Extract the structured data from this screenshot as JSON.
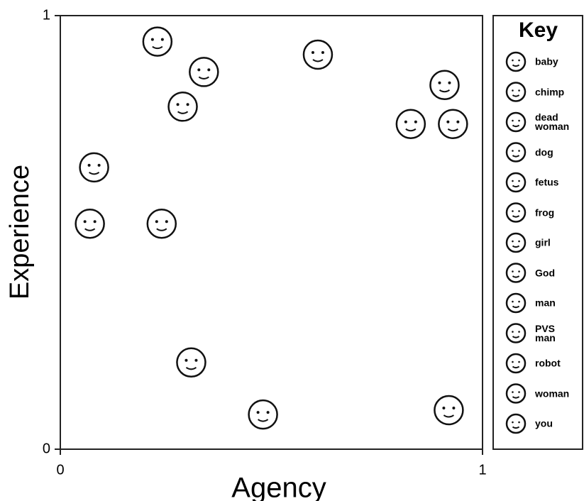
{
  "chart_data": {
    "type": "scatter",
    "xlabel": "Agency",
    "ylabel": "Experience",
    "legend_title": "Key",
    "xlim": [
      0,
      1
    ],
    "ylim": [
      0,
      1
    ],
    "xticks": [
      0,
      1
    ],
    "yticks": [
      0,
      1
    ],
    "series": [
      {
        "name": "baby",
        "x": [
          0.23
        ],
        "y": [
          0.94
        ]
      },
      {
        "name": "chimp",
        "x": [
          0.34
        ],
        "y": [
          0.87
        ]
      },
      {
        "name": "dead woman",
        "x": [
          0.31
        ],
        "y": [
          0.2
        ]
      },
      {
        "name": "dog",
        "x": [
          0.29
        ],
        "y": [
          0.79
        ]
      },
      {
        "name": "fetus",
        "x": [
          0.07
        ],
        "y": [
          0.52
        ]
      },
      {
        "name": "frog",
        "x": [
          0.08
        ],
        "y": [
          0.65
        ]
      },
      {
        "name": "girl",
        "x": [
          0.61
        ],
        "y": [
          0.91
        ]
      },
      {
        "name": "God",
        "x": [
          0.92
        ],
        "y": [
          0.09
        ]
      },
      {
        "name": "man",
        "x": [
          0.83
        ],
        "y": [
          0.75
        ]
      },
      {
        "name": "PVS man",
        "x": [
          0.24
        ],
        "y": [
          0.52
        ]
      },
      {
        "name": "robot",
        "x": [
          0.48
        ],
        "y": [
          0.08
        ]
      },
      {
        "name": "woman",
        "x": [
          0.91
        ],
        "y": [
          0.84
        ]
      },
      {
        "name": "you",
        "x": [
          0.93
        ],
        "y": [
          0.75
        ]
      }
    ]
  }
}
